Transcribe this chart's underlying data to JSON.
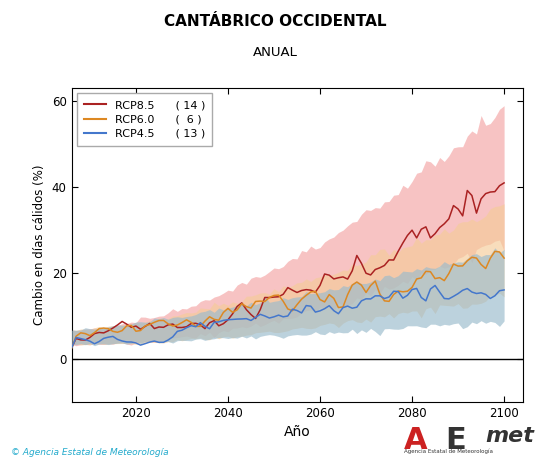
{
  "title": "CANTÁBRICO OCCIDENTAL",
  "subtitle": "ANUAL",
  "xlabel": "Año",
  "ylabel": "Cambio en días cálidos (%)",
  "xlim": [
    2006,
    2104
  ],
  "ylim": [
    -10,
    63
  ],
  "yticks": [
    0,
    20,
    40,
    60
  ],
  "xticks": [
    2020,
    2040,
    2060,
    2080,
    2100
  ],
  "year_start": 2006,
  "year_end": 2100,
  "rcp85_color": "#aa2222",
  "rcp60_color": "#dd8822",
  "rcp45_color": "#4477cc",
  "rcp85_fill": "#f5aaaa",
  "rcp60_fill": "#f5cc99",
  "rcp45_fill": "#99bbcc",
  "background_color": "#ffffff",
  "plot_bg_color": "#ffffff",
  "zero_line_color": "#000000",
  "footer_text": "© Agencia Estatal de Meteorología",
  "footer_color": "#22aacc"
}
